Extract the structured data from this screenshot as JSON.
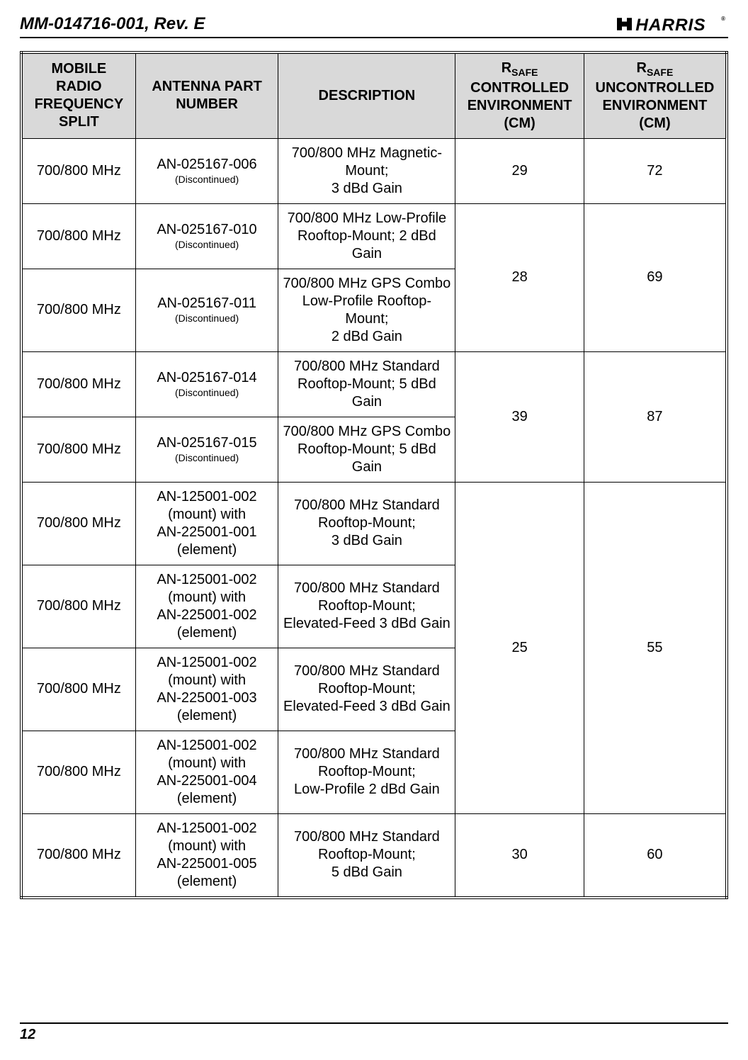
{
  "header": {
    "doc_id": "MM-014716-001, Rev. E",
    "logo_text": "HARRIS"
  },
  "table": {
    "columns": {
      "freq": "MOBILE RADIO FREQUENCY SPLIT",
      "part": "ANTENNA PART NUMBER",
      "desc": "DESCRIPTION",
      "ctrl_prefix": "R",
      "ctrl_sub": "SAFE",
      "ctrl_rest": "CONTROLLED ENVIRONMENT (CM)",
      "unctrl_prefix": "R",
      "unctrl_sub": "SAFE",
      "unctrl_rest": "UNCONTROLLED ENVIRONMENT (CM)"
    },
    "rows": [
      {
        "freq": "700/800 MHz",
        "part_main": "AN-025167-006",
        "part_sub": "(Discontinued)",
        "desc": "700/800 MHz Magnetic-Mount;\n3 dBd Gain",
        "ctrl": "29",
        "unctrl": "72",
        "ctrl_rowspan": 1
      },
      {
        "freq": "700/800 MHz",
        "part_main": "AN-025167-010",
        "part_sub": "(Discontinued)",
        "desc": "700/800 MHz Low-Profile Rooftop-Mount; 2 dBd Gain",
        "ctrl": "28",
        "unctrl": "69",
        "ctrl_rowspan": 2
      },
      {
        "freq": "700/800 MHz",
        "part_main": "AN-025167-011",
        "part_sub": "(Discontinued)",
        "desc": "700/800 MHz GPS Combo\nLow-Profile Rooftop-Mount;\n2 dBd Gain"
      },
      {
        "freq": "700/800 MHz",
        "part_main": "AN-025167-014",
        "part_sub": "(Discontinued)",
        "desc": "700/800 MHz Standard Rooftop-Mount; 5 dBd Gain",
        "ctrl": "39",
        "unctrl": "87",
        "ctrl_rowspan": 2
      },
      {
        "freq": "700/800 MHz",
        "part_main": "AN-025167-015",
        "part_sub": "(Discontinued)",
        "desc": "700/800 MHz GPS Combo\nRooftop-Mount; 5 dBd Gain"
      },
      {
        "freq": "700/800 MHz",
        "part_main": "AN-125001-002 (mount) with\nAN-225001-001 (element)",
        "part_sub": "",
        "desc": "700/800 MHz Standard Rooftop-Mount;\n3 dBd Gain",
        "ctrl": "25",
        "unctrl": "55",
        "ctrl_rowspan": 4
      },
      {
        "freq": "700/800 MHz",
        "part_main": "AN-125001-002 (mount) with\nAN-225001-002 (element)",
        "part_sub": "",
        "desc": "700/800 MHz Standard Rooftop-Mount;\nElevated-Feed 3 dBd Gain"
      },
      {
        "freq": "700/800 MHz",
        "part_main": "AN-125001-002 (mount) with\nAN-225001-003 (element)",
        "part_sub": "",
        "desc": "700/800 MHz Standard Rooftop-Mount;\nElevated-Feed 3 dBd Gain"
      },
      {
        "freq": "700/800 MHz",
        "part_main": "AN-125001-002 (mount) with\nAN-225001-004 (element)",
        "part_sub": "",
        "desc": "700/800 MHz Standard Rooftop-Mount;\nLow-Profile 2 dBd Gain"
      },
      {
        "freq": "700/800 MHz",
        "part_main": "AN-125001-002 (mount) with\nAN-225001-005 (element)",
        "part_sub": "",
        "desc": "700/800 MHz Standard Rooftop-Mount;\n5 dBd Gain",
        "ctrl": "30",
        "unctrl": "60",
        "ctrl_rowspan": 1
      }
    ]
  },
  "footer": {
    "page_number": "12"
  },
  "style": {
    "header_bg": "#d9d9d9",
    "border_color": "#000000",
    "page_bg": "#ffffff",
    "text_color": "#000000",
    "body_fontsize": 20,
    "header_fontsize": 20,
    "sub_fontsize": 14,
    "docid_fontsize": 24,
    "logo_fontsize": 28
  }
}
